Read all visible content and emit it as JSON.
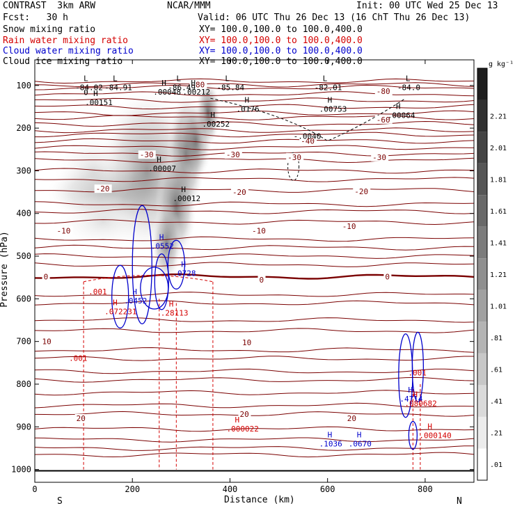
{
  "header": {
    "model": "CONTRAST  3km ARW",
    "org": "NCAR/MMM",
    "init": "Init: 00 UTC Wed 25 Dec 13",
    "fcst": "Fcst:   30 h",
    "valid": "Valid: 06 UTC Thu 26 Dec 13 (16 ChT Thu 26 Dec 13)",
    "fields": [
      {
        "label": "Snow mixing ratio",
        "xy": "XY= 100.0,100.0 to 100.0,400.0",
        "color": "#000000"
      },
      {
        "label": "Rain water mixing ratio",
        "xy": "XY= 100.0,100.0 to 100.0,400.0",
        "color": "#d40000"
      },
      {
        "label": "Cloud water mixing ratio",
        "xy": "XY= 100.0,100.0 to 100.0,400.0",
        "color": "#0000cc"
      },
      {
        "label": "Cloud ice mixing ratio",
        "xy": "XY= 100.0,100.0 to 100.0,400.0",
        "color": "#000000"
      }
    ]
  },
  "chart_data": {
    "type": "contour cross-section",
    "xlabel": "Distance (km)",
    "ylabel": "Pressure (hPa)",
    "xlim": [
      0,
      900
    ],
    "ylim": [
      1030,
      40
    ],
    "x_ticks": [
      0,
      200,
      400,
      600,
      800
    ],
    "y_ticks": [
      100,
      200,
      300,
      400,
      500,
      600,
      700,
      800,
      900,
      1000
    ],
    "direction_left": "S",
    "direction_right": "N",
    "colorbar": {
      "unit": "g kg⁻¹",
      "labels": [
        "2.21",
        "2.01",
        "1.81",
        "1.61",
        "1.41",
        "1.21",
        "1.01",
        ".81",
        ".61",
        ".41",
        ".21",
        ".01"
      ]
    },
    "temperature_contours": [
      {
        "value": "-80",
        "p": 98
      },
      {
        "value": "-60",
        "p": 175
      },
      {
        "value": "-40",
        "p": 230
      },
      {
        "value": "-30",
        "p": 300
      },
      {
        "value": "-20",
        "p": 378
      },
      {
        "value": "-10",
        "p": 460
      },
      {
        "value": "0",
        "p": 548
      },
      {
        "value": "10",
        "p": 720
      },
      {
        "value": "20",
        "p": 870
      }
    ],
    "temperature_labels": [
      {
        "text": "-80",
        "x": 320,
        "p": 98
      },
      {
        "text": "-80",
        "x": 700,
        "p": 113
      },
      {
        "text": "-60",
        "x": 700,
        "p": 180
      },
      {
        "text": "-40",
        "x": 545,
        "p": 230
      },
      {
        "text": "-30",
        "x": 215,
        "p": 262
      },
      {
        "text": "-30",
        "x": 392,
        "p": 262
      },
      {
        "text": "-30",
        "x": 518,
        "p": 268
      },
      {
        "text": "-30",
        "x": 692,
        "p": 268
      },
      {
        "text": "-20",
        "x": 125,
        "p": 342
      },
      {
        "text": "-20",
        "x": 405,
        "p": 350
      },
      {
        "text": "-20",
        "x": 655,
        "p": 348
      },
      {
        "text": "-10",
        "x": 45,
        "p": 440
      },
      {
        "text": "-10",
        "x": 445,
        "p": 440
      },
      {
        "text": "-10",
        "x": 630,
        "p": 430
      },
      {
        "text": "0",
        "x": 18,
        "p": 548
      },
      {
        "text": "0",
        "x": 460,
        "p": 555
      },
      {
        "text": "0",
        "x": 718,
        "p": 548
      },
      {
        "text": "10",
        "x": 15,
        "p": 700
      },
      {
        "text": "10",
        "x": 425,
        "p": 702
      },
      {
        "text": "20",
        "x": 85,
        "p": 880
      },
      {
        "text": "20",
        "x": 420,
        "p": 870
      },
      {
        "text": "20",
        "x": 640,
        "p": 880
      }
    ],
    "extrema": [
      {
        "kind": "L",
        "x": 100,
        "p": 90,
        "value": "-84.02",
        "color": "#000000"
      },
      {
        "kind": "L",
        "x": 160,
        "p": 90,
        "value": "-84.91",
        "color": "#000000"
      },
      {
        "kind": "L",
        "x": 290,
        "p": 90,
        "value": "-86.49",
        "color": "#000000"
      },
      {
        "kind": "L",
        "x": 390,
        "p": 90,
        "value": "-85.84",
        "color": "#000000"
      },
      {
        "kind": "L",
        "x": 590,
        "p": 90,
        "value": "-82.01",
        "color": "#000000"
      },
      {
        "kind": "L",
        "x": 760,
        "p": 90,
        "value": "-84.0",
        "color": "#000000"
      },
      {
        "kind": "H",
        "x": 260,
        "p": 100,
        "value": ".00048",
        "color": "#000000"
      },
      {
        "kind": "H",
        "x": 320,
        "p": 100,
        "value": ".00212",
        "color": "#000000"
      },
      {
        "kind": "H",
        "x": 120,
        "p": 125,
        "value": ".00151",
        "color": "#000000"
      },
      {
        "kind": "H",
        "x": 430,
        "p": 140,
        "value": ".0176",
        "color": "#000000"
      },
      {
        "kind": "H",
        "x": 600,
        "p": 140,
        "value": ".00753",
        "color": "#000000"
      },
      {
        "kind": "H",
        "x": 740,
        "p": 155,
        "value": ".00064",
        "color": "#000000"
      },
      {
        "kind": "H",
        "x": 360,
        "p": 175,
        "value": ".00252",
        "color": "#000000"
      },
      {
        "kind": "H",
        "x": 250,
        "p": 280,
        "value": ".00007",
        "color": "#000000"
      },
      {
        "kind": "H",
        "x": 300,
        "p": 350,
        "value": ".00012",
        "color": "#000000"
      },
      {
        "kind": "H",
        "x": 255,
        "p": 462,
        "value": ".0552",
        "color": "#0000cc"
      },
      {
        "kind": "H",
        "x": 200,
        "p": 590,
        "value": ".0452",
        "color": "#0000cc"
      },
      {
        "kind": "H",
        "x": 300,
        "p": 525,
        "value": ".0728",
        "color": "#0000cc"
      },
      {
        "kind": "H",
        "x": 160,
        "p": 615,
        "value": ".072231",
        "color": "#d40000"
      },
      {
        "kind": "H",
        "x": 275,
        "p": 618,
        "value": ".28113",
        "color": "#d40000"
      },
      {
        "kind": "H",
        "x": 410,
        "p": 890,
        "value": ".000022",
        "color": "#d40000"
      },
      {
        "kind": "H",
        "x": 765,
        "p": 820,
        "value": ".4714",
        "color": "#0000cc"
      },
      {
        "kind": "H",
        "x": 775,
        "p": 830,
        "value": ".080682",
        "color": "#d40000"
      },
      {
        "kind": "H",
        "x": 805,
        "p": 905,
        "value": ".000140",
        "color": "#d40000"
      },
      {
        "kind": "H",
        "x": 600,
        "p": 925,
        "value": ".1036",
        "color": "#0000cc"
      },
      {
        "kind": "H",
        "x": 660,
        "p": 925,
        "value": ".0670",
        "color": "#0000cc"
      }
    ],
    "extra_labels": [
      {
        "text": "0",
        "x": 100,
        "p": 122,
        "color": "#000000"
      },
      {
        "text": "-.0040",
        "x": 530,
        "p": 225,
        "color": "#000000"
      },
      {
        "text": ".001",
        "x": 110,
        "p": 590,
        "color": "#d40000"
      },
      {
        "text": ".001",
        "x": 70,
        "p": 745,
        "color": "#d40000"
      },
      {
        "text": ".001",
        "x": 765,
        "p": 780,
        "color": "#d40000"
      }
    ]
  }
}
